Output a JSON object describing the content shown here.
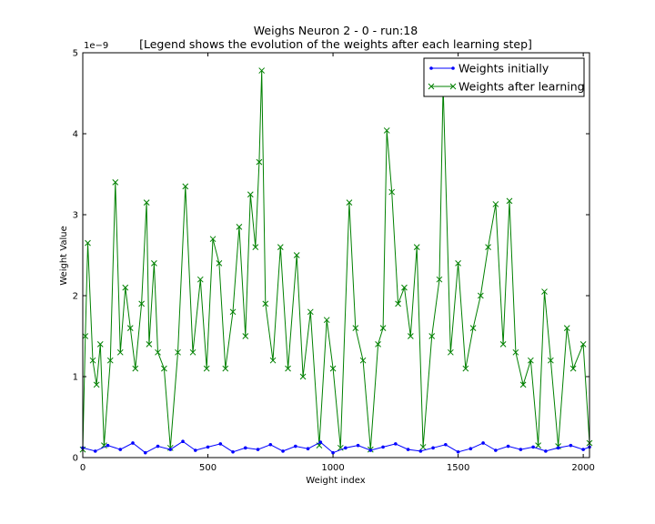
{
  "chart_data": {
    "type": "line",
    "title": "Weighs Neuron 2 - 0 - run:18",
    "subtitle": "[Legend shows the evolution of the weights after each learning step]",
    "xlabel": "Weight index",
    "ylabel": "Weight Value",
    "y_scale_label": "1e−9",
    "xlim": [
      0,
      2025
    ],
    "ylim": [
      0,
      5
    ],
    "x_ticks": [
      "0",
      "500",
      "1000",
      "1500",
      "2000"
    ],
    "y_ticks": [
      "0",
      "1",
      "2",
      "3",
      "4",
      "5"
    ],
    "grid": false,
    "legend_position": "top-right",
    "series": [
      {
        "name": "Weights initially",
        "color": "#0000ff",
        "marker": "dot",
        "x": [
          0,
          50,
          100,
          150,
          200,
          250,
          300,
          350,
          400,
          450,
          500,
          550,
          600,
          650,
          700,
          750,
          800,
          850,
          900,
          950,
          1000,
          1050,
          1100,
          1150,
          1200,
          1250,
          1300,
          1350,
          1400,
          1450,
          1500,
          1550,
          1600,
          1650,
          1700,
          1750,
          1800,
          1850,
          1900,
          1950,
          2000,
          2025
        ],
        "values": [
          0.12,
          0.08,
          0.15,
          0.1,
          0.18,
          0.06,
          0.14,
          0.1,
          0.2,
          0.09,
          0.13,
          0.17,
          0.07,
          0.12,
          0.1,
          0.16,
          0.08,
          0.14,
          0.11,
          0.19,
          0.06,
          0.12,
          0.15,
          0.09,
          0.13,
          0.17,
          0.1,
          0.08,
          0.12,
          0.16,
          0.07,
          0.11,
          0.18,
          0.09,
          0.14,
          0.1,
          0.13,
          0.08,
          0.12,
          0.15,
          0.1,
          0.13
        ]
      },
      {
        "name": "Weights after learning",
        "color": "#008000",
        "marker": "x",
        "x": [
          0,
          10,
          20,
          40,
          55,
          70,
          85,
          110,
          130,
          150,
          170,
          190,
          210,
          235,
          255,
          265,
          285,
          300,
          325,
          350,
          380,
          410,
          440,
          470,
          495,
          520,
          545,
          570,
          600,
          625,
          650,
          670,
          690,
          705,
          715,
          730,
          760,
          790,
          820,
          855,
          880,
          910,
          945,
          975,
          1000,
          1030,
          1065,
          1090,
          1120,
          1150,
          1180,
          1200,
          1215,
          1235,
          1260,
          1285,
          1310,
          1335,
          1360,
          1395,
          1425,
          1440,
          1470,
          1500,
          1530,
          1560,
          1590,
          1620,
          1650,
          1680,
          1705,
          1730,
          1760,
          1790,
          1820,
          1845,
          1870,
          1900,
          1935,
          1960,
          2000,
          2025
        ],
        "values": [
          0.1,
          1.5,
          2.65,
          1.2,
          0.9,
          1.4,
          0.15,
          1.2,
          3.4,
          1.3,
          2.1,
          1.6,
          1.1,
          1.9,
          3.15,
          1.4,
          2.4,
          1.3,
          1.1,
          0.12,
          1.3,
          3.35,
          1.3,
          2.2,
          1.1,
          2.7,
          2.4,
          1.1,
          1.8,
          2.85,
          1.5,
          3.25,
          2.6,
          3.65,
          4.78,
          1.9,
          1.2,
          2.6,
          1.1,
          2.5,
          1.0,
          1.8,
          0.15,
          1.7,
          1.1,
          0.12,
          3.15,
          1.6,
          1.2,
          0.1,
          1.4,
          1.6,
          4.04,
          3.28,
          1.9,
          2.1,
          1.5,
          2.6,
          0.13,
          1.5,
          2.2,
          4.6,
          1.3,
          2.4,
          1.1,
          1.6,
          2.0,
          2.6,
          3.13,
          1.4,
          3.17,
          1.3,
          0.9,
          1.2,
          0.15,
          2.05,
          1.2,
          0.14,
          1.6,
          1.1,
          1.4,
          0.18
        ]
      }
    ]
  }
}
